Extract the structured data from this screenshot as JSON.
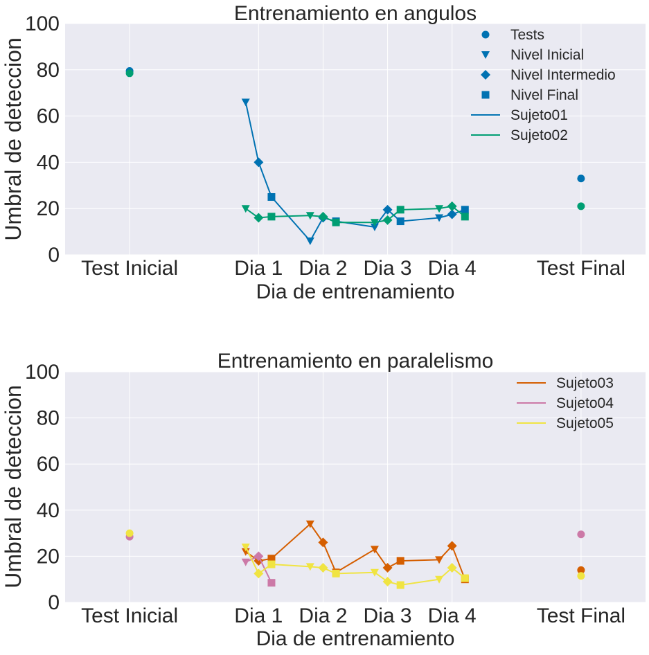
{
  "chart_data": [
    {
      "type": "line",
      "title": "Entrenamiento en angulos",
      "xlabel": "Dia de entrenamiento",
      "ylabel": "Umbral de deteccion",
      "ylim": [
        0,
        100
      ],
      "yticks": [
        0,
        20,
        40,
        60,
        80,
        100
      ],
      "xtick_positions": [
        0,
        2,
        3,
        4,
        5,
        7
      ],
      "xtick_labels": [
        "Test Inicial",
        "Dia 1",
        "Dia 2",
        "Dia 3",
        "Dia 4",
        "Test Final"
      ],
      "xlim": [
        -1,
        8
      ],
      "grid": true,
      "legend_position": "top-right",
      "legend_markers": [
        {
          "label": "Tests",
          "marker": "circle"
        },
        {
          "label": "Nivel Inicial",
          "marker": "triangle-down"
        },
        {
          "label": "Nivel Intermedio",
          "marker": "diamond"
        },
        {
          "label": "Nivel Final",
          "marker": "square"
        }
      ],
      "series": [
        {
          "name": "Sujeto01",
          "color": "#0072b2",
          "tests": [
            {
              "x": 0,
              "y": 79.5
            },
            {
              "x": 7,
              "y": 33
            }
          ],
          "training": [
            {
              "x": 1.8,
              "y": 66,
              "marker": "triangle-down"
            },
            {
              "x": 2.0,
              "y": 40,
              "marker": "diamond"
            },
            {
              "x": 2.2,
              "y": 25,
              "marker": "square"
            },
            {
              "x": 2.8,
              "y": 6,
              "marker": "triangle-down"
            },
            {
              "x": 3.0,
              "y": 16,
              "marker": "diamond"
            },
            {
              "x": 3.2,
              "y": 14.5,
              "marker": "square"
            },
            {
              "x": 3.8,
              "y": 12,
              "marker": "triangle-down"
            },
            {
              "x": 4.0,
              "y": 19.5,
              "marker": "diamond"
            },
            {
              "x": 4.2,
              "y": 14.5,
              "marker": "square"
            },
            {
              "x": 4.8,
              "y": 16,
              "marker": "triangle-down"
            },
            {
              "x": 5.0,
              "y": 17.5,
              "marker": "diamond"
            },
            {
              "x": 5.2,
              "y": 19.5,
              "marker": "square"
            }
          ]
        },
        {
          "name": "Sujeto02",
          "color": "#009e73",
          "tests": [
            {
              "x": 0,
              "y": 78.5
            },
            {
              "x": 7,
              "y": 21
            }
          ],
          "training": [
            {
              "x": 1.8,
              "y": 20,
              "marker": "triangle-down"
            },
            {
              "x": 2.0,
              "y": 16,
              "marker": "diamond"
            },
            {
              "x": 2.2,
              "y": 16.5,
              "marker": "square"
            },
            {
              "x": 2.8,
              "y": 17,
              "marker": "triangle-down"
            },
            {
              "x": 3.0,
              "y": 16.5,
              "marker": "diamond"
            },
            {
              "x": 3.2,
              "y": 14,
              "marker": "square"
            },
            {
              "x": 3.8,
              "y": 14,
              "marker": "triangle-down"
            },
            {
              "x": 4.0,
              "y": 15,
              "marker": "diamond"
            },
            {
              "x": 4.2,
              "y": 19.5,
              "marker": "square"
            },
            {
              "x": 4.8,
              "y": 20,
              "marker": "triangle-down"
            },
            {
              "x": 5.0,
              "y": 21,
              "marker": "diamond"
            },
            {
              "x": 5.2,
              "y": 16.5,
              "marker": "square"
            }
          ]
        }
      ]
    },
    {
      "type": "line",
      "title": "Entrenamiento en paralelismo",
      "xlabel": "Dia de entrenamiento",
      "ylabel": "Umbral de deteccion",
      "ylim": [
        0,
        100
      ],
      "yticks": [
        0,
        20,
        40,
        60,
        80,
        100
      ],
      "xtick_positions": [
        0,
        2,
        3,
        4,
        5,
        7
      ],
      "xtick_labels": [
        "Test Inicial",
        "Dia 1",
        "Dia 2",
        "Dia 3",
        "Dia 4",
        "Test Final"
      ],
      "xlim": [
        -1,
        8
      ],
      "grid": true,
      "legend_position": "top-right",
      "legend_markers": [],
      "series": [
        {
          "name": "Sujeto03",
          "color": "#d55e00",
          "tests": [
            {
              "x": 7,
              "y": 14
            }
          ],
          "training": [
            {
              "x": 1.8,
              "y": 22,
              "marker": "triangle-down"
            },
            {
              "x": 2.0,
              "y": 18,
              "marker": "diamond"
            },
            {
              "x": 2.2,
              "y": 19,
              "marker": "square"
            },
            {
              "x": 2.8,
              "y": 34,
              "marker": "triangle-down"
            },
            {
              "x": 3.0,
              "y": 26,
              "marker": "diamond"
            },
            {
              "x": 3.2,
              "y": 13,
              "marker": "square"
            },
            {
              "x": 3.8,
              "y": 23,
              "marker": "triangle-down"
            },
            {
              "x": 4.0,
              "y": 15,
              "marker": "diamond"
            },
            {
              "x": 4.2,
              "y": 18,
              "marker": "square"
            },
            {
              "x": 4.8,
              "y": 18.5,
              "marker": "triangle-down"
            },
            {
              "x": 5.0,
              "y": 24.5,
              "marker": "diamond"
            },
            {
              "x": 5.2,
              "y": 10,
              "marker": "square"
            }
          ]
        },
        {
          "name": "Sujeto04",
          "color": "#cc79a7",
          "tests": [
            {
              "x": 0,
              "y": 28.5
            },
            {
              "x": 7,
              "y": 29.5
            }
          ],
          "training": [
            {
              "x": 1.8,
              "y": 17.5,
              "marker": "triangle-down"
            },
            {
              "x": 2.0,
              "y": 20,
              "marker": "diamond"
            },
            {
              "x": 2.2,
              "y": 8.5,
              "marker": "square"
            }
          ]
        },
        {
          "name": "Sujeto05",
          "color": "#f0e442",
          "tests": [
            {
              "x": 0,
              "y": 30
            },
            {
              "x": 7,
              "y": 11.5
            }
          ],
          "training": [
            {
              "x": 1.8,
              "y": 24,
              "marker": "triangle-down"
            },
            {
              "x": 2.0,
              "y": 12.5,
              "marker": "diamond"
            },
            {
              "x": 2.2,
              "y": 16.5,
              "marker": "square"
            },
            {
              "x": 2.8,
              "y": 15.5,
              "marker": "triangle-down"
            },
            {
              "x": 3.0,
              "y": 15,
              "marker": "diamond"
            },
            {
              "x": 3.2,
              "y": 12.5,
              "marker": "square"
            },
            {
              "x": 3.8,
              "y": 13,
              "marker": "triangle-down"
            },
            {
              "x": 4.0,
              "y": 9,
              "marker": "diamond"
            },
            {
              "x": 4.2,
              "y": 7.5,
              "marker": "square"
            },
            {
              "x": 4.8,
              "y": 10,
              "marker": "triangle-down"
            },
            {
              "x": 5.0,
              "y": 15,
              "marker": "diamond"
            },
            {
              "x": 5.2,
              "y": 10.5,
              "marker": "square"
            }
          ]
        }
      ]
    }
  ],
  "theme": {
    "axes_background": "#eaeaf2",
    "grid_color": "#ffffff",
    "text_color": "#262626",
    "legend_marker_color": "#0072b2"
  }
}
